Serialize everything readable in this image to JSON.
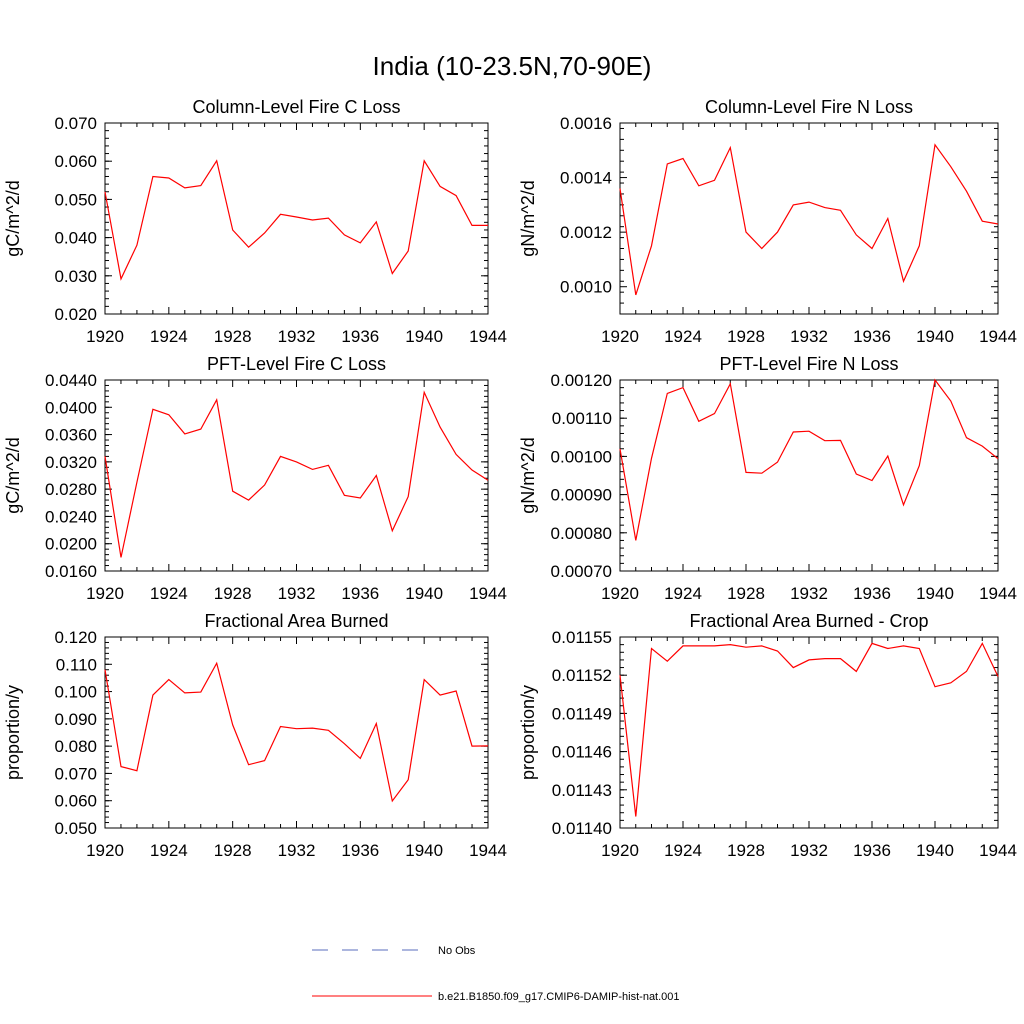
{
  "page_title": "India (10-23.5N,70-90E)",
  "legend": {
    "entries": [
      {
        "label": "No Obs",
        "color": "#5a6ebe",
        "style": "dashed"
      },
      {
        "label": "b.e21.B1850.f09_g17.CMIP6-DAMIP-hist-nat.001",
        "color": "#ff0000",
        "style": "solid"
      }
    ]
  },
  "chart_data": [
    {
      "type": "line",
      "title": "Column-Level Fire C Loss",
      "ylabel": "gC/m^2/d",
      "xlim": [
        1920,
        1944
      ],
      "ylim": [
        0.02,
        0.07
      ],
      "x_ticks": [
        "1920",
        "1924",
        "1928",
        "1932",
        "1936",
        "1940",
        "1944"
      ],
      "y_ticks": [
        "0.020",
        "0.030",
        "0.040",
        "0.050",
        "0.060",
        "0.070"
      ],
      "x": [
        1920,
        1921,
        1922,
        1923,
        1924,
        1925,
        1926,
        1927,
        1928,
        1929,
        1930,
        1931,
        1932,
        1933,
        1934,
        1935,
        1936,
        1937,
        1938,
        1939,
        1940,
        1941,
        1942,
        1943,
        1944
      ],
      "series": [
        {
          "color": "#ff0000",
          "values": [
            0.052,
            0.0292,
            0.038,
            0.056,
            0.0556,
            0.053,
            0.0536,
            0.0601,
            0.042,
            0.0375,
            0.0412,
            0.0461,
            0.0454,
            0.0446,
            0.0451,
            0.0407,
            0.0386,
            0.0441,
            0.0306,
            0.0365,
            0.0601,
            0.0534,
            0.051,
            0.0432,
            0.0432
          ]
        }
      ]
    },
    {
      "type": "line",
      "title": "Column-Level Fire N Loss",
      "ylabel": "gN/m^2/d",
      "xlim": [
        1920,
        1944
      ],
      "ylim": [
        0.0009,
        0.0016
      ],
      "x_ticks": [
        "1920",
        "1924",
        "1928",
        "1932",
        "1936",
        "1940",
        "1944"
      ],
      "y_ticks": [
        "0.0010",
        "0.0012",
        "0.0014",
        "0.0016"
      ],
      "y_tick_values": [
        0.001,
        0.0012,
        0.0014,
        0.0016
      ],
      "x": [
        1920,
        1921,
        1922,
        1923,
        1924,
        1925,
        1926,
        1927,
        1928,
        1929,
        1930,
        1931,
        1932,
        1933,
        1934,
        1935,
        1936,
        1937,
        1938,
        1939,
        1940,
        1941,
        1942,
        1943,
        1944
      ],
      "series": [
        {
          "color": "#ff0000",
          "values": [
            0.00136,
            0.00097,
            0.00115,
            0.00145,
            0.00147,
            0.00137,
            0.00139,
            0.00151,
            0.0012,
            0.00114,
            0.0012,
            0.0013,
            0.00131,
            0.00129,
            0.00128,
            0.00119,
            0.00114,
            0.00125,
            0.00102,
            0.00115,
            0.00152,
            0.00144,
            0.00135,
            0.00124,
            0.00123
          ]
        }
      ]
    },
    {
      "type": "line",
      "title": "PFT-Level Fire C Loss",
      "ylabel": "gC/m^2/d",
      "xlim": [
        1920,
        1944
      ],
      "ylim": [
        0.016,
        0.044
      ],
      "x_ticks": [
        "1920",
        "1924",
        "1928",
        "1932",
        "1936",
        "1940",
        "1944"
      ],
      "y_ticks": [
        "0.0160",
        "0.0200",
        "0.0240",
        "0.0280",
        "0.0320",
        "0.0360",
        "0.0400",
        "0.0440"
      ],
      "x": [
        1920,
        1921,
        1922,
        1923,
        1924,
        1925,
        1926,
        1927,
        1928,
        1929,
        1930,
        1931,
        1932,
        1933,
        1934,
        1935,
        1936,
        1937,
        1938,
        1939,
        1940,
        1941,
        1942,
        1943,
        1944
      ],
      "series": [
        {
          "color": "#ff0000",
          "values": [
            0.0328,
            0.018,
            0.029,
            0.0397,
            0.0389,
            0.0361,
            0.0368,
            0.0411,
            0.0277,
            0.0264,
            0.0286,
            0.0328,
            0.032,
            0.0309,
            0.0315,
            0.0271,
            0.0267,
            0.03,
            0.0219,
            0.0269,
            0.0422,
            0.0371,
            0.0331,
            0.0308,
            0.0293
          ]
        }
      ]
    },
    {
      "type": "line",
      "title": "PFT-Level Fire N Loss",
      "ylabel": "gN/m^2/d",
      "xlim": [
        1920,
        1944
      ],
      "ylim": [
        0.0007,
        0.0012
      ],
      "x_ticks": [
        "1920",
        "1924",
        "1928",
        "1932",
        "1936",
        "1940",
        "1944"
      ],
      "y_ticks": [
        "0.00070",
        "0.00080",
        "0.00090",
        "0.00100",
        "0.00110",
        "0.00120"
      ],
      "x": [
        1920,
        1921,
        1922,
        1923,
        1924,
        1925,
        1926,
        1927,
        1928,
        1929,
        1930,
        1931,
        1932,
        1933,
        1934,
        1935,
        1936,
        1937,
        1938,
        1939,
        1940,
        1941,
        1942,
        1943,
        1944
      ],
      "series": [
        {
          "color": "#ff0000",
          "values": [
            0.00102,
            0.00078,
            0.000995,
            0.001165,
            0.00118,
            0.001092,
            0.001112,
            0.00119,
            0.000958,
            0.000956,
            0.000985,
            0.001064,
            0.001066,
            0.001041,
            0.001042,
            0.000954,
            0.000937,
            0.001001,
            0.000873,
            0.000976,
            0.0012,
            0.001145,
            0.001049,
            0.001027,
            0.000994
          ]
        }
      ]
    },
    {
      "type": "line",
      "title": "Fractional Area Burned",
      "ylabel": "proportion/y",
      "xlim": [
        1920,
        1944
      ],
      "ylim": [
        0.05,
        0.12
      ],
      "x_ticks": [
        "1920",
        "1924",
        "1928",
        "1932",
        "1936",
        "1940",
        "1944"
      ],
      "y_ticks": [
        "0.050",
        "0.060",
        "0.070",
        "0.080",
        "0.090",
        "0.100",
        "0.110",
        "0.120"
      ],
      "x": [
        1920,
        1921,
        1922,
        1923,
        1924,
        1925,
        1926,
        1927,
        1928,
        1929,
        1930,
        1931,
        1932,
        1933,
        1934,
        1935,
        1936,
        1937,
        1938,
        1939,
        1940,
        1941,
        1942,
        1943,
        1944
      ],
      "series": [
        {
          "color": "#ff0000",
          "values": [
            0.108,
            0.0725,
            0.071,
            0.0987,
            0.1044,
            0.0995,
            0.0998,
            0.1104,
            0.0878,
            0.0732,
            0.0747,
            0.0872,
            0.0864,
            0.0866,
            0.0858,
            0.0809,
            0.0755,
            0.0883,
            0.0599,
            0.0677,
            0.1044,
            0.0987,
            0.1002,
            0.08,
            0.0801
          ]
        }
      ]
    },
    {
      "type": "line",
      "title": "Fractional Area Burned - Crop",
      "ylabel": "proportion/y",
      "xlim": [
        1920,
        1944
      ],
      "ylim": [
        0.0114,
        0.01155
      ],
      "x_ticks": [
        "1920",
        "1924",
        "1928",
        "1932",
        "1936",
        "1940",
        "1944"
      ],
      "y_ticks": [
        "0.01140",
        "0.01143",
        "0.01146",
        "0.01149",
        "0.01152",
        "0.01155"
      ],
      "x": [
        1920,
        1921,
        1922,
        1923,
        1924,
        1925,
        1926,
        1927,
        1928,
        1929,
        1930,
        1931,
        1932,
        1933,
        1934,
        1935,
        1936,
        1937,
        1938,
        1939,
        1940,
        1941,
        1942,
        1943,
        1944
      ],
      "series": [
        {
          "color": "#ff0000",
          "values": [
            0.01152,
            0.011409,
            0.011541,
            0.011531,
            0.011543,
            0.011543,
            0.011543,
            0.011544,
            0.011542,
            0.011543,
            0.011539,
            0.011526,
            0.011532,
            0.011533,
            0.011533,
            0.011523,
            0.011545,
            0.011541,
            0.011543,
            0.011541,
            0.011511,
            0.011514,
            0.011523,
            0.011545,
            0.011519
          ]
        }
      ]
    }
  ]
}
